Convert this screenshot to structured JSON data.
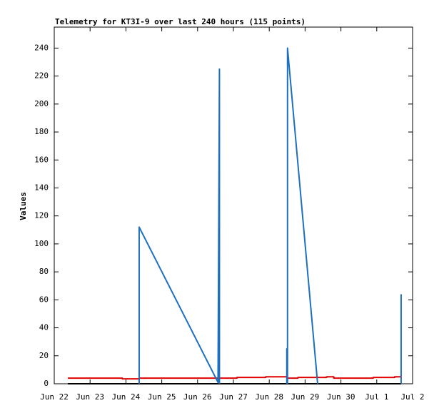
{
  "chart_data": {
    "type": "line",
    "title": "Telemetry for KT3I-9 over last 240 hours (115 points)",
    "ylabel": "Values",
    "xlim": [
      0,
      10
    ],
    "xticks": [
      {
        "value": 0,
        "label": "Jun 22"
      },
      {
        "value": 1,
        "label": "Jun 23"
      },
      {
        "value": 2,
        "label": "Jun 24"
      },
      {
        "value": 3,
        "label": "Jun 25"
      },
      {
        "value": 4,
        "label": "Jun 26"
      },
      {
        "value": 5,
        "label": "Jun 27"
      },
      {
        "value": 6,
        "label": "Jun 28"
      },
      {
        "value": 7,
        "label": "Jun 29"
      },
      {
        "value": 8,
        "label": "Jun 30"
      },
      {
        "value": 9,
        "label": "Jul 1"
      },
      {
        "value": 10,
        "label": "Jul 2"
      }
    ],
    "ylim": [
      0,
      255
    ],
    "yticks": [
      0,
      20,
      40,
      60,
      80,
      100,
      120,
      140,
      160,
      180,
      200,
      220,
      240
    ],
    "series": [
      {
        "color": "#000000",
        "x": [
          0.38,
          9.68
        ],
        "values": [
          0,
          0
        ]
      },
      {
        "color": "#e00000",
        "x": [
          0.38,
          1.9,
          1.9,
          2.37,
          2.37,
          5.1,
          5.1,
          5.9,
          5.9,
          6.5,
          6.5,
          6.8,
          6.8,
          7.6,
          7.6,
          7.8,
          7.8,
          8.9,
          8.9,
          9.5,
          9.5,
          9.68
        ],
        "values": [
          4,
          4,
          3.5,
          3.5,
          4,
          4,
          4.5,
          4.5,
          5,
          5,
          4,
          4,
          4.5,
          4.5,
          5,
          5,
          4,
          4,
          4.5,
          4.5,
          5,
          5
        ]
      },
      {
        "color": "#1f6fc0",
        "x": [
          2.37,
          2.37,
          4.57,
          4.61,
          4.61,
          null,
          6.49,
          6.49,
          6.5,
          null,
          6.51,
          6.51,
          7.35,
          null,
          9.68,
          9.68
        ],
        "values": [
          0,
          112,
          1,
          225,
          0,
          null,
          0,
          25,
          0,
          null,
          0,
          240,
          0,
          null,
          0,
          64
        ]
      }
    ]
  }
}
